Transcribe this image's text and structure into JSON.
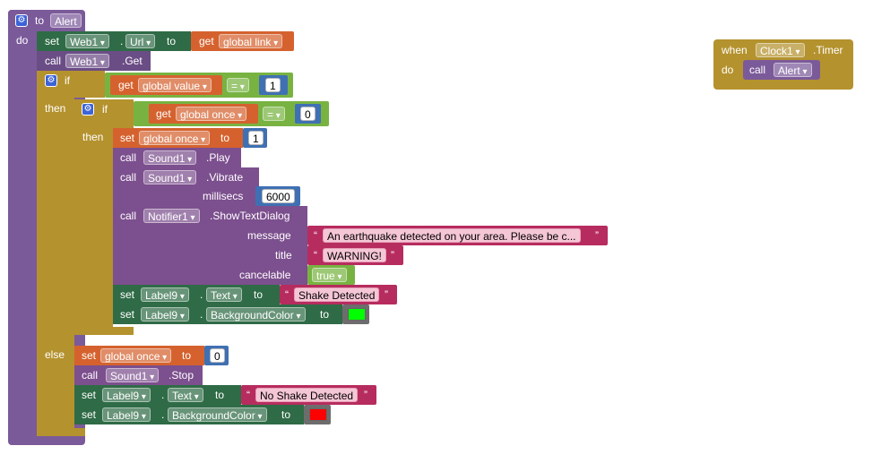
{
  "colors": {
    "procedure": "#7b5a9a",
    "control": "#b4922e",
    "web_call": "#6b4d86",
    "sound_call": "#7c4f8e",
    "variable": "#d5622e",
    "logic": "#78b342",
    "math": "#3f70b3",
    "text": "#b72c5e",
    "setter": "#2f6b46",
    "color_green": "#00ff00",
    "color_red": "#ff0000"
  },
  "procedure": {
    "keyword_to": "to",
    "name": "Alert",
    "keyword_do": "do",
    "set_web_url": {
      "set": "set",
      "component": "Web1",
      "dot": ".",
      "property": "Url",
      "to": "to",
      "get": "get",
      "variable": "global link"
    },
    "call_web_get": {
      "call": "call",
      "component": "Web1",
      "method": ".Get"
    },
    "if1": {
      "keyword_if": "if",
      "keyword_then": "then",
      "keyword_else": "else",
      "condition": {
        "get": "get",
        "variable": "global value",
        "operator": "=",
        "value": "1"
      },
      "if2": {
        "keyword_if": "if",
        "keyword_then": "then",
        "condition": {
          "get": "get",
          "variable": "global once",
          "operator": "=",
          "value": "0"
        },
        "set_once": {
          "set": "set",
          "variable": "global once",
          "to": "to",
          "value": "1"
        },
        "call_play": {
          "call": "call",
          "component": "Sound1",
          "method": ".Play"
        },
        "call_vibrate": {
          "call": "call",
          "component": "Sound1",
          "method": ".Vibrate",
          "param_label": "millisecs",
          "param_value": "6000"
        },
        "call_dialog": {
          "call": "call",
          "component": "Notifier1",
          "method": ".ShowTextDialog",
          "message_label": "message",
          "message_value": "An earthquake detected on your area. Please be c...",
          "title_label": "title",
          "title_value": "WARNING!",
          "cancelable_label": "cancelable",
          "cancelable_value": "true"
        },
        "set_label_text": {
          "set": "set",
          "component": "Label9",
          "dot": ".",
          "property": "Text",
          "to": "to",
          "value": "Shake Detected"
        },
        "set_label_bg": {
          "set": "set",
          "component": "Label9",
          "dot": ".",
          "property": "BackgroundColor",
          "to": "to"
        }
      },
      "else_branch": {
        "set_once": {
          "set": "set",
          "variable": "global once",
          "to": "to",
          "value": "0"
        },
        "call_stop": {
          "call": "call",
          "component": "Sound1",
          "method": ".Stop"
        },
        "set_label_text": {
          "set": "set",
          "component": "Label9",
          "dot": ".",
          "property": "Text",
          "to": "to",
          "value": "No Shake Detected"
        },
        "set_label_bg": {
          "set": "set",
          "component": "Label9",
          "dot": ".",
          "property": "BackgroundColor",
          "to": "to"
        }
      }
    }
  },
  "timer_event": {
    "keyword_when": "when",
    "component": "Clock1",
    "event": ".Timer",
    "keyword_do": "do",
    "call": "call",
    "procedure": "Alert"
  }
}
